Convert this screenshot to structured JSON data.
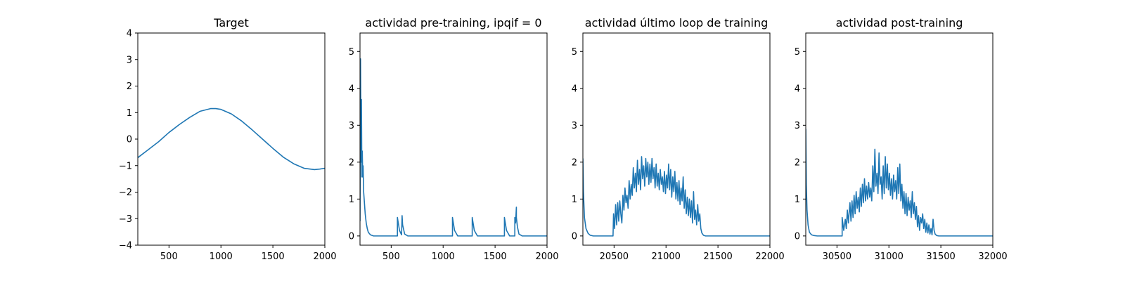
{
  "chart_data": [
    {
      "type": "line",
      "title": "Target",
      "xlim": [
        200,
        2000
      ],
      "ylim": [
        -4,
        4
      ],
      "xticks": [
        500,
        1000,
        1500,
        2000
      ],
      "yticks": [
        -4,
        -3,
        -2,
        -1,
        0,
        1,
        2,
        3,
        4
      ],
      "xlabel": "",
      "ylabel": "",
      "grid": false,
      "color": "#1f77b4",
      "series": [
        {
          "x": [
            200,
            300,
            400,
            500,
            600,
            700,
            800,
            900,
            950,
            1000,
            1100,
            1200,
            1300,
            1400,
            1500,
            1600,
            1700,
            1800,
            1900,
            1950,
            2000
          ],
          "values": [
            -0.7,
            -0.4,
            -0.1,
            0.25,
            0.55,
            0.82,
            1.05,
            1.15,
            1.15,
            1.12,
            0.95,
            0.68,
            0.35,
            0.0,
            -0.35,
            -0.68,
            -0.93,
            -1.1,
            -1.15,
            -1.13,
            -1.1
          ]
        }
      ]
    },
    {
      "type": "line",
      "title": "actividad pre-training, ipqif = 0",
      "xlim": [
        200,
        2000
      ],
      "ylim": [
        -0.25,
        5.5
      ],
      "xticks": [
        500,
        1000,
        1500,
        2000
      ],
      "yticks": [
        0,
        1,
        2,
        3,
        4,
        5
      ],
      "xlabel": "",
      "ylabel": "",
      "grid": false,
      "color": "#1f77b4",
      "series": [
        {
          "x": [
            200,
            205,
            210,
            214,
            218,
            222,
            226,
            230,
            235,
            240,
            250,
            260,
            270,
            280,
            300,
            330,
            560,
            560,
            580,
            600,
            605,
            610,
            630,
            660,
            1090,
            1090,
            1110,
            1140,
            1280,
            1280,
            1300,
            1330,
            1590,
            1590,
            1610,
            1640,
            1690,
            1690,
            1697,
            1705,
            1705,
            1715,
            1730,
            1760,
            2000
          ],
          "values": [
            0.4,
            4.8,
            2.0,
            3.7,
            1.6,
            2.3,
            1.6,
            1.9,
            1.2,
            1.0,
            0.6,
            0.35,
            0.2,
            0.1,
            0.03,
            0.0,
            0.0,
            0.5,
            0.15,
            0.03,
            0.55,
            0.3,
            0.05,
            0.0,
            0.0,
            0.5,
            0.15,
            0.0,
            0.0,
            0.5,
            0.15,
            0.0,
            0.0,
            0.5,
            0.15,
            0.0,
            0.0,
            0.5,
            0.35,
            0.78,
            0.5,
            0.25,
            0.05,
            0.0,
            0.0
          ]
        }
      ]
    },
    {
      "type": "line",
      "title": "actividad último loop de training",
      "xlim": [
        20200,
        22000
      ],
      "ylim": [
        -0.25,
        5.5
      ],
      "xticks": [
        20500,
        21000,
        21500,
        22000
      ],
      "yticks": [
        0,
        1,
        2,
        3,
        4,
        5
      ],
      "xlabel": "",
      "ylabel": "",
      "grid": false,
      "color": "#1f77b4",
      "series": [
        {
          "x": [
            20200,
            20205,
            20215,
            20230,
            20250,
            20270,
            20300,
            20490,
            20495,
            20505,
            20515,
            20525,
            20535,
            20545,
            20555,
            20565,
            20575,
            20585,
            20595,
            20605,
            20615,
            20625,
            20635,
            20645,
            20655,
            20665,
            20675,
            20685,
            20695,
            20705,
            20715,
            20725,
            20735,
            20745,
            20755,
            20765,
            20775,
            20785,
            20795,
            20805,
            20815,
            20825,
            20835,
            20845,
            20855,
            20865,
            20875,
            20885,
            20895,
            20905,
            20915,
            20925,
            20935,
            20945,
            20955,
            20965,
            20975,
            20985,
            20995,
            21005,
            21015,
            21025,
            21035,
            21045,
            21055,
            21065,
            21075,
            21085,
            21095,
            21105,
            21115,
            21125,
            21135,
            21145,
            21155,
            21165,
            21175,
            21185,
            21195,
            21205,
            21215,
            21225,
            21235,
            21245,
            21255,
            21265,
            21275,
            21285,
            21295,
            21305,
            21315,
            21325,
            21335,
            21345,
            21360,
            21380,
            22000
          ],
          "values": [
            2.1,
            1.2,
            0.5,
            0.2,
            0.07,
            0.02,
            0.0,
            0.0,
            0.6,
            0.2,
            0.85,
            0.3,
            0.9,
            0.4,
            0.95,
            0.6,
            0.35,
            1.1,
            0.7,
            1.3,
            0.9,
            1.1,
            0.75,
            1.5,
            1.0,
            1.4,
            1.1,
            1.85,
            1.3,
            1.7,
            1.2,
            2.05,
            1.4,
            1.8,
            1.25,
            2.15,
            1.55,
            1.9,
            1.35,
            2.1,
            1.6,
            2.0,
            1.4,
            1.95,
            1.45,
            2.1,
            1.55,
            1.85,
            1.3,
            1.95,
            1.35,
            1.7,
            1.25,
            1.8,
            1.4,
            1.6,
            1.2,
            1.75,
            1.15,
            1.65,
            1.3,
            1.95,
            1.25,
            1.8,
            1.05,
            1.6,
            1.2,
            1.75,
            1.0,
            1.45,
            0.95,
            1.5,
            0.85,
            1.3,
            0.95,
            1.6,
            0.75,
            1.25,
            0.6,
            1.05,
            0.55,
            1.0,
            0.5,
            0.95,
            0.35,
            1.2,
            0.45,
            0.7,
            0.3,
            0.85,
            0.4,
            0.6,
            0.2,
            0.08,
            0.02,
            0.0,
            0.0
          ]
        }
      ]
    },
    {
      "type": "line",
      "title": "actividad post-training",
      "xlim": [
        30200,
        32000
      ],
      "ylim": [
        -0.25,
        5.5
      ],
      "xticks": [
        30500,
        31000,
        31500,
        32000
      ],
      "yticks": [
        0,
        1,
        2,
        3,
        4,
        5
      ],
      "xlabel": "",
      "ylabel": "",
      "grid": false,
      "color": "#1f77b4",
      "series": [
        {
          "x": [
            30200,
            30205,
            30212,
            30222,
            30235,
            30255,
            30280,
            30310,
            30550,
            30550,
            30565,
            30580,
            30590,
            30600,
            30610,
            30625,
            30635,
            30645,
            30655,
            30665,
            30675,
            30685,
            30695,
            30705,
            30715,
            30725,
            30735,
            30745,
            30755,
            30765,
            30775,
            30785,
            30795,
            30805,
            30815,
            30825,
            30835,
            30845,
            30855,
            30865,
            30875,
            30885,
            30895,
            30905,
            30915,
            30925,
            30935,
            30945,
            30955,
            30965,
            30975,
            30985,
            30995,
            31005,
            31015,
            31025,
            31035,
            31045,
            31055,
            31065,
            31075,
            31085,
            31095,
            31105,
            31115,
            31125,
            31135,
            31145,
            31155,
            31165,
            31175,
            31185,
            31195,
            31205,
            31215,
            31225,
            31235,
            31245,
            31255,
            31265,
            31275,
            31285,
            31295,
            31305,
            31315,
            31325,
            31335,
            31345,
            31355,
            31365,
            31375,
            31385,
            31395,
            31405,
            31415,
            31425,
            31435,
            31445,
            31460,
            31480,
            32000
          ],
          "values": [
            2.9,
            1.4,
            0.7,
            0.3,
            0.1,
            0.03,
            0.01,
            0.0,
            0.0,
            0.5,
            0.15,
            0.45,
            0.2,
            0.7,
            0.35,
            0.9,
            0.4,
            0.95,
            0.5,
            1.1,
            0.6,
            1.2,
            0.75,
            1.05,
            0.65,
            1.3,
            0.8,
            1.4,
            0.9,
            1.55,
            0.95,
            1.35,
            1.0,
            1.45,
            1.05,
            1.3,
            0.95,
            1.9,
            1.2,
            2.35,
            1.35,
            1.7,
            1.15,
            2.25,
            1.4,
            1.6,
            1.0,
            1.9,
            1.15,
            2.15,
            1.3,
            1.95,
            1.25,
            1.7,
            1.1,
            1.55,
            1.0,
            1.65,
            1.2,
            1.5,
            1.0,
            1.85,
            1.15,
            1.95,
            0.95,
            1.4,
            0.75,
            1.2,
            0.6,
            1.15,
            0.55,
            1.05,
            0.7,
            0.95,
            0.5,
            1.2,
            0.6,
            0.9,
            0.45,
            0.8,
            0.25,
            0.55,
            0.15,
            0.5,
            0.35,
            0.6,
            0.2,
            0.45,
            0.1,
            0.35,
            0.08,
            0.3,
            0.05,
            0.2,
            0.03,
            0.45,
            0.15,
            0.05,
            0.01,
            0.0,
            0.0
          ]
        }
      ]
    }
  ]
}
